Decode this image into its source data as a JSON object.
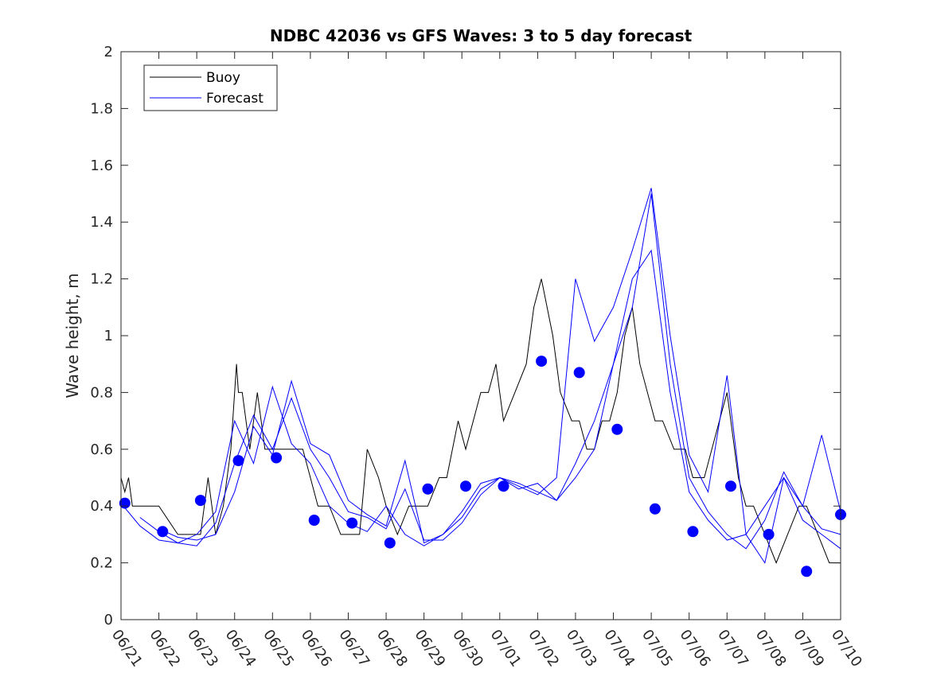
{
  "chart_data": {
    "type": "line",
    "title": "NDBC 42036 vs GFS Waves: 3 to 5 day forecast",
    "ylabel": "Wave height, m",
    "xlabel": "",
    "ylim": [
      0,
      2
    ],
    "yticks": [
      "0",
      "0.2",
      "0.4",
      "0.6",
      "0.8",
      "1",
      "1.2",
      "1.4",
      "1.6",
      "1.8",
      "2"
    ],
    "xlim": [
      0,
      19
    ],
    "xticks": [
      "06/21",
      "06/22",
      "06/23",
      "06/24",
      "06/25",
      "06/26",
      "06/27",
      "06/28",
      "06/29",
      "06/30",
      "07/01",
      "07/02",
      "07/03",
      "07/04",
      "07/05",
      "07/06",
      "07/07",
      "07/08",
      "07/09",
      "07/10"
    ],
    "x_unit": "days since 06/21 00:00",
    "legend": {
      "position": "top-left",
      "entries": [
        {
          "label": "Buoy",
          "color": "#000000"
        },
        {
          "label": "Forecast",
          "color": "#0000ff"
        }
      ]
    },
    "series": [
      {
        "name": "Buoy",
        "color": "#000000",
        "x": [
          0,
          0.1,
          0.2,
          0.3,
          0.5,
          1.0,
          1.5,
          1.8,
          2.1,
          2.3,
          2.5,
          2.7,
          2.9,
          3.05,
          3.1,
          3.2,
          3.4,
          3.6,
          3.8,
          4.0,
          4.3,
          4.6,
          4.8,
          5.0,
          5.2,
          5.5,
          5.8,
          6.0,
          6.3,
          6.5,
          6.8,
          7.0,
          7.3,
          7.6,
          7.9,
          8.1,
          8.4,
          8.6,
          8.9,
          9.1,
          9.3,
          9.5,
          9.7,
          9.9,
          10.1,
          10.4,
          10.7,
          10.9,
          11.1,
          11.4,
          11.6,
          11.9,
          12.1,
          12.3,
          12.5,
          12.7,
          12.9,
          13.1,
          13.3,
          13.5,
          13.7,
          13.9,
          14.1,
          14.3,
          14.6,
          14.9,
          15.1,
          15.4,
          15.6,
          15.8,
          16.0,
          16.3,
          16.5,
          16.7,
          17.0,
          17.3,
          17.6,
          17.9,
          18.1,
          18.4,
          18.7,
          19.0
        ],
        "y": [
          0.5,
          0.45,
          0.5,
          0.4,
          0.4,
          0.4,
          0.3,
          0.3,
          0.3,
          0.5,
          0.3,
          0.4,
          0.6,
          0.9,
          0.8,
          0.8,
          0.6,
          0.8,
          0.6,
          0.6,
          0.6,
          0.6,
          0.6,
          0.5,
          0.4,
          0.4,
          0.3,
          0.3,
          0.3,
          0.6,
          0.5,
          0.4,
          0.3,
          0.4,
          0.4,
          0.4,
          0.5,
          0.5,
          0.7,
          0.6,
          0.7,
          0.8,
          0.8,
          0.9,
          0.7,
          0.8,
          0.9,
          1.1,
          1.2,
          1.0,
          0.8,
          0.7,
          0.7,
          0.6,
          0.6,
          0.7,
          0.7,
          0.8,
          1.0,
          1.1,
          0.9,
          0.8,
          0.7,
          0.7,
          0.6,
          0.6,
          0.5,
          0.5,
          0.6,
          0.7,
          0.8,
          0.5,
          0.4,
          0.4,
          0.3,
          0.2,
          0.3,
          0.4,
          0.4,
          0.3,
          0.2,
          0.2
        ]
      },
      {
        "name": "Forecast",
        "color": "#0000ff",
        "x": [
          0,
          0.5,
          1,
          1.5,
          2,
          2.5,
          3,
          3.5,
          4,
          4.5,
          5,
          5.5,
          6,
          6.5,
          7,
          7.5,
          8,
          8.5,
          9,
          9.5,
          10,
          10.5,
          11,
          11.5,
          12,
          12.5,
          13,
          13.5,
          14,
          14.5,
          15,
          15.5,
          16,
          16.5,
          17,
          17.5,
          18,
          18.5,
          19
        ],
        "y": [
          0.41,
          0.33,
          0.28,
          0.27,
          0.3,
          0.38,
          0.7,
          0.55,
          0.82,
          0.62,
          0.55,
          0.4,
          0.34,
          0.31,
          0.4,
          0.3,
          0.26,
          0.3,
          0.38,
          0.48,
          0.5,
          0.46,
          0.48,
          0.42,
          0.5,
          0.6,
          0.9,
          1.2,
          1.3,
          0.8,
          0.45,
          0.35,
          0.28,
          0.3,
          0.4,
          0.5,
          0.35,
          0.3,
          0.25
        ]
      },
      {
        "name": "Forecast",
        "color": "#0000ff",
        "x": [
          0.5,
          1,
          1.5,
          2,
          2.5,
          3,
          3.5,
          4,
          4.5,
          5,
          5.5,
          6,
          6.5,
          7,
          7.5,
          8,
          8.5,
          9,
          9.5,
          10,
          10.5,
          11,
          11.5,
          12,
          12.5,
          13,
          13.5,
          14,
          14.5,
          15,
          15.5,
          16,
          16.5,
          17,
          17.5,
          18,
          18.5,
          19
        ],
        "y": [
          0.36,
          0.31,
          0.27,
          0.26,
          0.34,
          0.55,
          0.72,
          0.6,
          0.78,
          0.6,
          0.5,
          0.38,
          0.36,
          0.32,
          0.46,
          0.28,
          0.28,
          0.34,
          0.44,
          0.5,
          0.48,
          0.45,
          0.42,
          0.55,
          0.7,
          0.9,
          1.1,
          1.5,
          0.9,
          0.5,
          0.38,
          0.3,
          0.25,
          0.35,
          0.52,
          0.4,
          0.32,
          0.3
        ]
      },
      {
        "name": "Forecast",
        "color": "#0000ff",
        "x": [
          1,
          1.5,
          2,
          2.5,
          3,
          3.5,
          4,
          4.5,
          5,
          5.5,
          6,
          6.5,
          7,
          7.5,
          8,
          8.5,
          9,
          9.5,
          10,
          10.5,
          11,
          11.5,
          12,
          12.5,
          13,
          13.5,
          14,
          14.5,
          15,
          15.5,
          16,
          16.5,
          17,
          17.5,
          18,
          18.5,
          19
        ],
        "y": [
          0.32,
          0.29,
          0.28,
          0.3,
          0.45,
          0.68,
          0.58,
          0.84,
          0.62,
          0.58,
          0.42,
          0.37,
          0.33,
          0.56,
          0.27,
          0.3,
          0.36,
          0.46,
          0.5,
          0.47,
          0.44,
          0.5,
          1.2,
          0.98,
          1.1,
          1.3,
          1.52,
          1.0,
          0.58,
          0.45,
          0.86,
          0.3,
          0.2,
          0.5,
          0.4,
          0.65,
          0.38
        ]
      }
    ],
    "forecast_points": {
      "x": [
        0.1,
        1.1,
        2.1,
        3.1,
        4.1,
        5.1,
        6.1,
        7.1,
        8.1,
        9.1,
        10.1,
        11.1,
        12.1,
        13.1,
        14.1,
        15.1,
        16.1,
        17.1,
        18.1,
        19.0
      ],
      "y": [
        0.41,
        0.31,
        0.42,
        0.56,
        0.57,
        0.35,
        0.34,
        0.27,
        0.46,
        0.47,
        0.47,
        0.91,
        0.87,
        0.67,
        0.39,
        0.31,
        0.47,
        0.3,
        0.17,
        0.37
      ]
    }
  }
}
